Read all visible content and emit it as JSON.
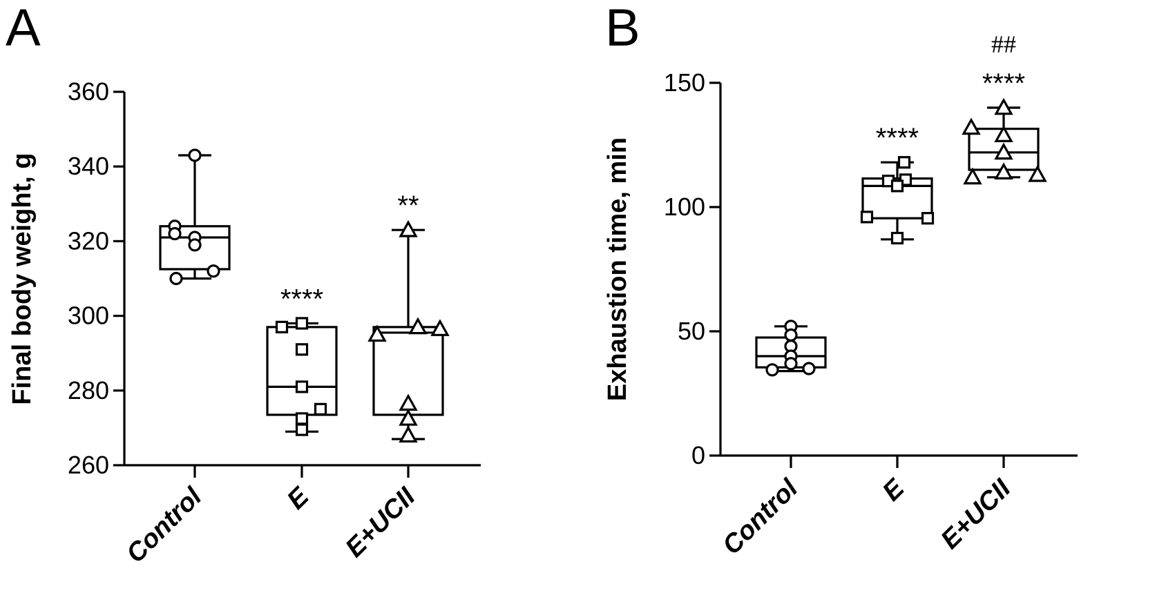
{
  "chart_data": [
    {
      "panel": "A",
      "type": "box",
      "ylabel": "Final body weight, g",
      "ylim": [
        260,
        360
      ],
      "yticks": [
        260,
        280,
        300,
        320,
        340,
        360
      ],
      "categories": [
        "Control",
        "E",
        "E+UCII"
      ],
      "marker": [
        "circle",
        "square",
        "triangle"
      ],
      "boxes": [
        {
          "category": "Control",
          "min": 310,
          "q1": 312.5,
          "median": 321,
          "q3": 324,
          "max": 343,
          "points": [
            343,
            324,
            322,
            321,
            319,
            312,
            310
          ],
          "significance": "",
          "significance2": ""
        },
        {
          "category": "E",
          "min": 269,
          "q1": 273.5,
          "median": 281,
          "q3": 297,
          "max": 298,
          "points": [
            298,
            297,
            291,
            281,
            275,
            272.5,
            269.5
          ],
          "significance": "****",
          "significance2": ""
        },
        {
          "category": "E+UCII",
          "min": 267,
          "q1": 273.5,
          "median": 295.5,
          "q3": 297,
          "max": 323,
          "points": [
            323,
            297,
            296.5,
            295,
            276.5,
            272.5,
            268
          ],
          "significance": "**",
          "significance2": ""
        }
      ]
    },
    {
      "panel": "B",
      "type": "box",
      "ylabel": "Exhaustion time, min",
      "ylim": [
        0,
        150
      ],
      "yticks": [
        0,
        50,
        100,
        150
      ],
      "categories": [
        "Control",
        "E",
        "E+UCII"
      ],
      "marker": [
        "circle",
        "square",
        "triangle"
      ],
      "boxes": [
        {
          "category": "Control",
          "min": 34,
          "q1": 35.5,
          "median": 40,
          "q3": 47.5,
          "max": 52,
          "points": [
            52,
            48.5,
            44,
            40,
            37,
            35,
            34.5
          ],
          "significance": "",
          "significance2": ""
        },
        {
          "category": "E",
          "min": 87,
          "q1": 95.5,
          "median": 108.5,
          "q3": 111.5,
          "max": 118,
          "points": [
            118,
            111,
            110.5,
            108.5,
            96,
            95.5,
            87.5
          ],
          "significance": "****",
          "significance2": ""
        },
        {
          "category": "E+UCII",
          "min": 112,
          "q1": 115,
          "median": 122,
          "q3": 131.5,
          "max": 140,
          "points": [
            140,
            132,
            129,
            122,
            114,
            113,
            112
          ],
          "significance": "****",
          "significance2": "##"
        }
      ]
    }
  ]
}
